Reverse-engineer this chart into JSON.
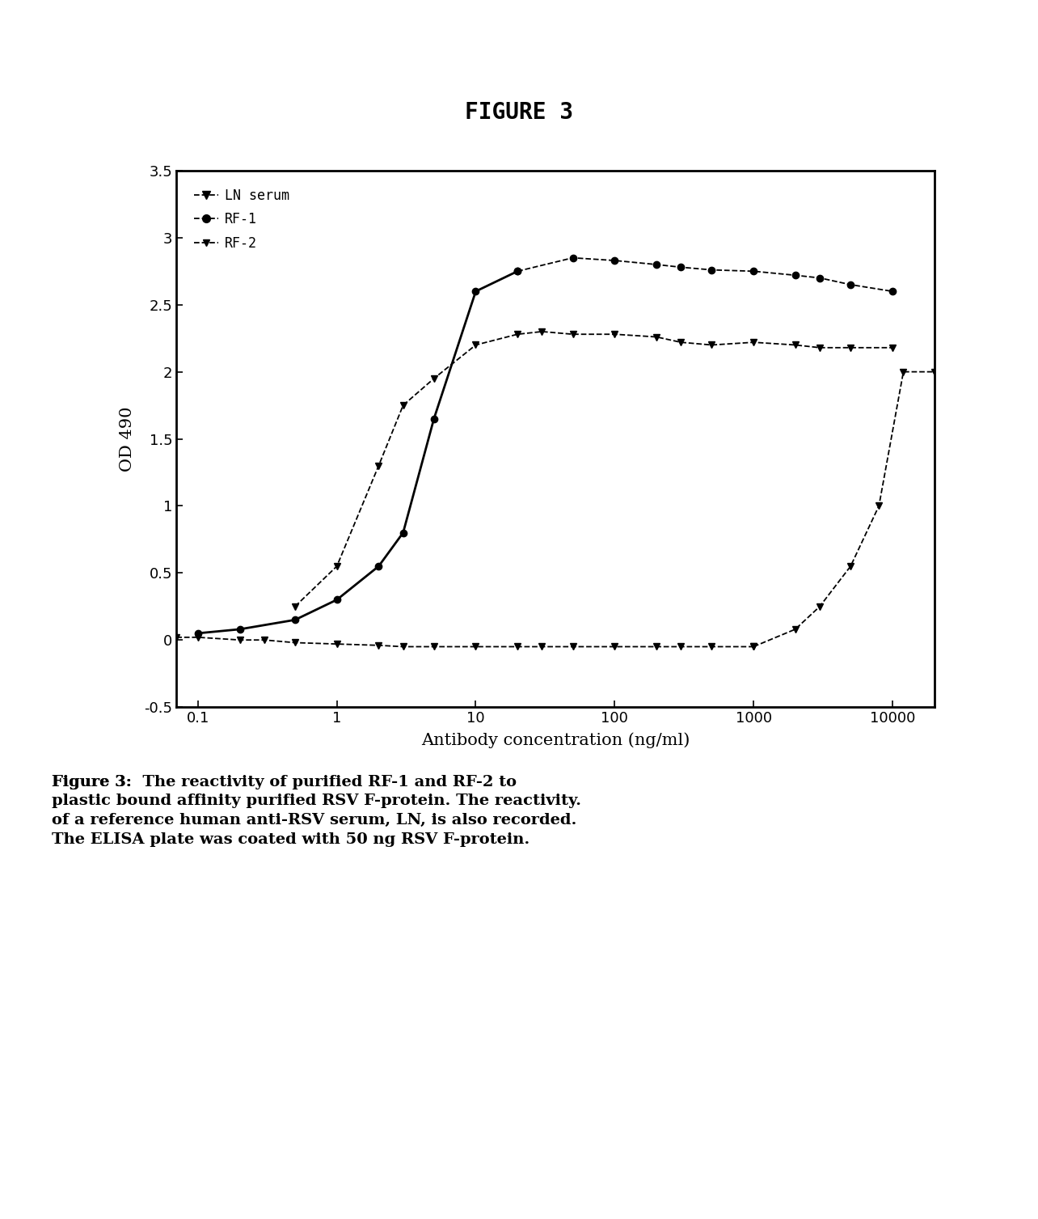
{
  "title": "FIGURE 3",
  "xlabel": "Antibody concentration (ng/ml)",
  "ylabel": "OD 490",
  "ylim": [
    -0.5,
    3.5
  ],
  "xticks": [
    0.1,
    1,
    10,
    100,
    1000,
    10000
  ],
  "yticks": [
    -0.5,
    0.0,
    0.5,
    1.0,
    1.5,
    2.0,
    2.5,
    3.0,
    3.5
  ],
  "LN_flat_x": [
    0.07,
    0.1,
    0.2,
    0.3,
    0.5,
    1.0,
    2.0,
    3.0,
    5.0,
    10,
    20,
    30,
    50,
    100,
    200,
    300,
    500,
    1000
  ],
  "LN_flat_y": [
    0.02,
    0.02,
    0.0,
    0.0,
    -0.02,
    -0.03,
    -0.04,
    -0.05,
    -0.05,
    -0.05,
    -0.05,
    -0.05,
    -0.05,
    -0.05,
    -0.05,
    -0.05,
    -0.05,
    -0.05
  ],
  "LN_rise_x": [
    1000,
    2000,
    3000,
    5000,
    8000,
    12000,
    20000
  ],
  "LN_rise_y": [
    -0.05,
    0.08,
    0.25,
    0.55,
    1.0,
    2.0,
    2.0
  ],
  "RF1_x": [
    0.1,
    0.2,
    0.5,
    1.0,
    2.0,
    3.0,
    5.0,
    10,
    20,
    50,
    100,
    200,
    300,
    500,
    1000,
    2000,
    3000,
    5000,
    10000
  ],
  "RF1_y": [
    0.05,
    0.08,
    0.15,
    0.3,
    0.55,
    0.8,
    1.65,
    2.6,
    2.75,
    2.85,
    2.83,
    2.8,
    2.78,
    2.76,
    2.75,
    2.72,
    2.7,
    2.65,
    2.6
  ],
  "RF1_solid_cutoff": 9,
  "RF2_x": [
    0.5,
    1.0,
    2.0,
    3.0,
    5.0,
    10,
    20,
    30,
    50,
    100,
    200,
    300,
    500,
    1000,
    2000,
    3000,
    5000,
    10000
  ],
  "RF2_y": [
    0.25,
    0.55,
    1.3,
    1.75,
    1.95,
    2.2,
    2.28,
    2.3,
    2.28,
    2.28,
    2.26,
    2.22,
    2.2,
    2.22,
    2.2,
    2.18,
    2.18,
    2.18
  ],
  "legend_labels": [
    "LN serum",
    "RF-1",
    "RF-2"
  ],
  "caption_bold": "Figure 3:",
  "caption_normal": "  The reactivity of purified RF-1 and RF-2 to\nplastic bound affinity purified RSV F-protein. The reactivity.\nof a reference human anti-RSV serum, LN, is also recorded.\nThe ELISA plate was coated with 50 ng RSV F-protein.",
  "background_color": "#ffffff"
}
